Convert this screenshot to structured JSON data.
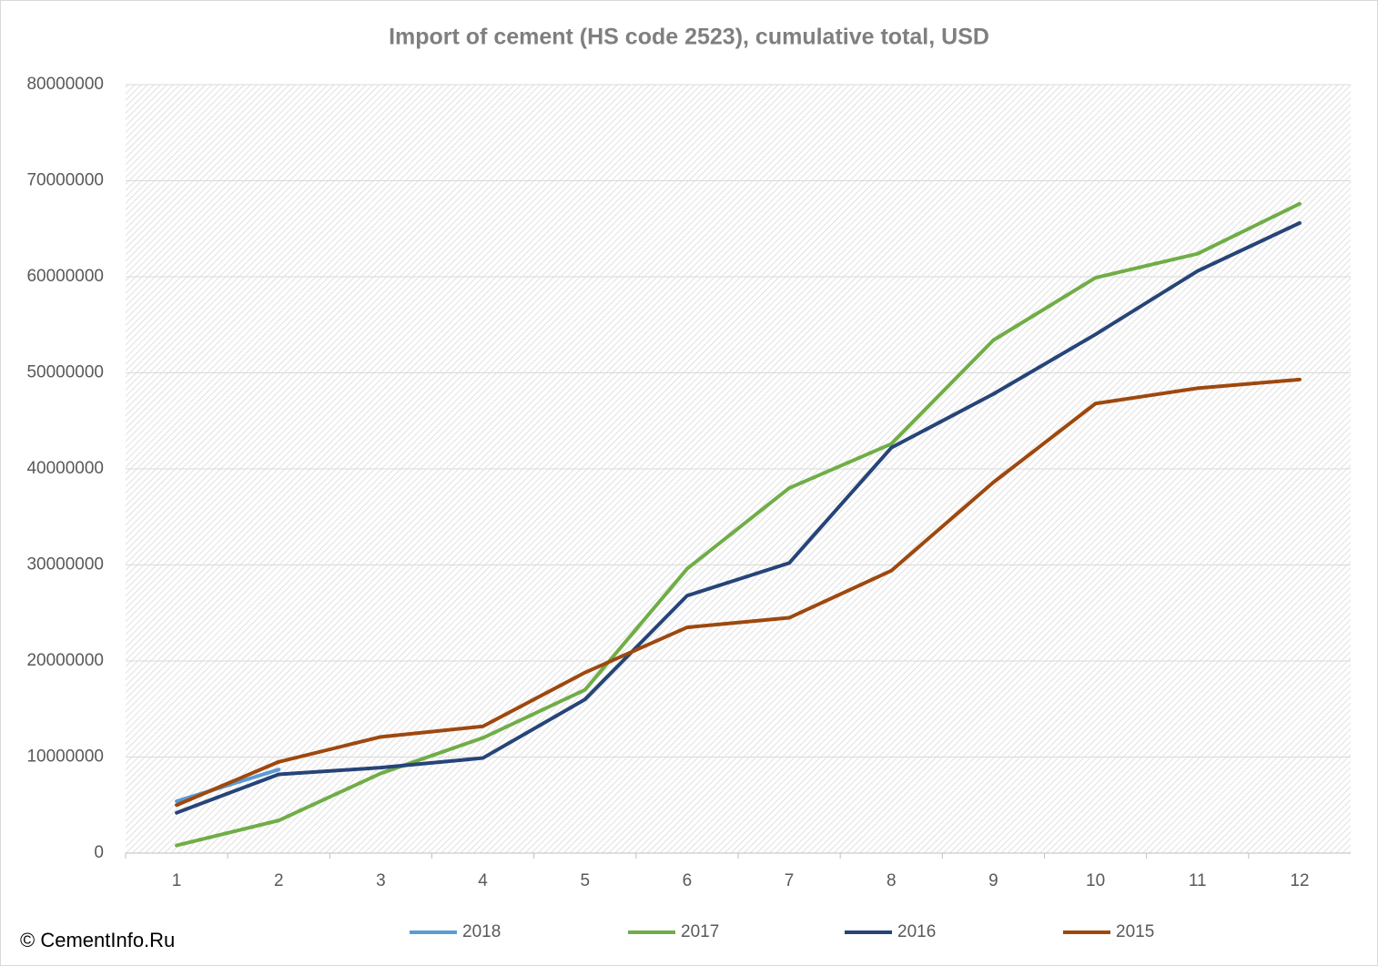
{
  "chart_data": {
    "type": "line",
    "title": "Import of cement (HS code 2523), cumulative total, USD",
    "categories": [
      1,
      2,
      3,
      4,
      5,
      6,
      7,
      8,
      9,
      10,
      11,
      12
    ],
    "series": [
      {
        "name": "2018",
        "color": "#5b9bd5",
        "values": [
          5400000,
          8700000,
          null,
          null,
          null,
          null,
          null,
          null,
          null,
          null,
          null,
          null
        ]
      },
      {
        "name": "2017",
        "color": "#70ad47",
        "values": [
          800000,
          3400000,
          8300000,
          12000000,
          17000000,
          29600000,
          38000000,
          42600000,
          53400000,
          59900000,
          62400000,
          67600000
        ]
      },
      {
        "name": "2016",
        "color": "#264478",
        "values": [
          4200000,
          8200000,
          8900000,
          9900000,
          16000000,
          26800000,
          30200000,
          42200000,
          47800000,
          54000000,
          60600000,
          65600000
        ]
      },
      {
        "name": "2015",
        "color": "#9e480e",
        "values": [
          5000000,
          9500000,
          12100000,
          13200000,
          18800000,
          23500000,
          24500000,
          29400000,
          38600000,
          46800000,
          48400000,
          49300000
        ]
      }
    ],
    "ylim": [
      0,
      80000000
    ],
    "yticks": [
      0,
      10000000,
      20000000,
      30000000,
      40000000,
      50000000,
      60000000,
      70000000,
      80000000
    ],
    "grid": true,
    "legend": "bottom",
    "copyright": "© CementInfo.Ru"
  }
}
